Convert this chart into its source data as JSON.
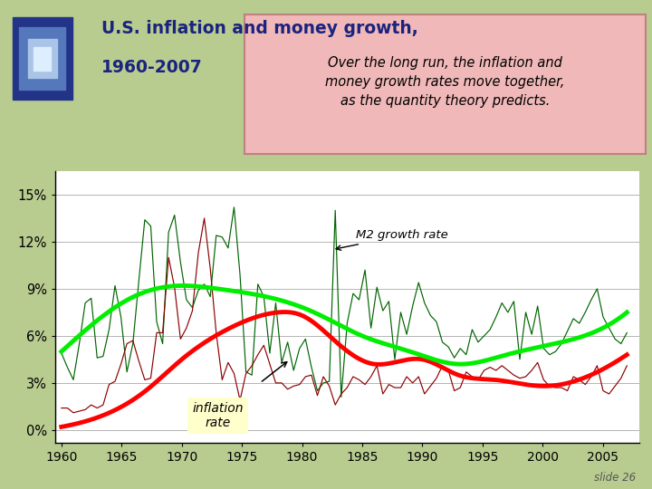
{
  "title_line1": "U.S. inflation and money growth,",
  "title_line2": "1960-2007",
  "title_color": "#1a237e",
  "background_color": "#b8cc90",
  "plot_bg_color": "#ffffff",
  "annotation_text": "Over the long run, the inflation and\nmoney growth rates move together,\nas the quantity theory predicts.",
  "annotation_bg": "#f0b8b8",
  "inflation_label": "inflation\nrate",
  "inflation_label_bg": "#ffffcc",
  "m2_label": "M2 growth rate",
  "yticks": [
    0,
    3,
    6,
    9,
    12,
    15
  ],
  "ytick_labels": [
    "0%",
    "3%",
    "6%",
    "9%",
    "12%",
    "15%"
  ],
  "xticks": [
    1960,
    1965,
    1970,
    1975,
    1980,
    1985,
    1990,
    1995,
    2000,
    2005
  ],
  "ylim": [
    -0.8,
    16.5
  ],
  "xlim": [
    1959.5,
    2008.0
  ],
  "slide_text": "slide 26",
  "inflation_color": "#8b0000",
  "m2_color": "#006400",
  "trend_inflation_color": "#ff0000",
  "trend_m2_color": "#00ee00",
  "infl_trend_x": [
    1960,
    1963,
    1967,
    1970,
    1974,
    1978,
    1980,
    1983,
    1986,
    1990,
    1993,
    1996,
    2000,
    2003,
    2007
  ],
  "infl_trend_y": [
    0.2,
    0.8,
    2.5,
    4.5,
    6.5,
    7.5,
    7.3,
    5.5,
    4.2,
    4.5,
    3.5,
    3.2,
    2.8,
    3.2,
    4.8
  ],
  "m2_trend_x": [
    1960,
    1963,
    1966,
    1970,
    1973,
    1977,
    1981,
    1985,
    1989,
    1993,
    1997,
    2001,
    2005,
    2007
  ],
  "m2_trend_y": [
    5.0,
    7.0,
    8.5,
    9.2,
    9.0,
    8.5,
    7.5,
    6.0,
    5.0,
    4.2,
    4.8,
    5.5,
    6.5,
    7.5
  ],
  "inflation_data": [
    1.4,
    1.4,
    1.1,
    1.2,
    1.3,
    1.6,
    1.4,
    1.6,
    2.9,
    3.1,
    4.2,
    5.5,
    5.7,
    4.4,
    3.2,
    3.3,
    6.2,
    6.2,
    11.0,
    9.1,
    5.8,
    6.5,
    7.6,
    11.3,
    13.5,
    10.3,
    6.2,
    3.2,
    4.3,
    3.6,
    1.9,
    3.6,
    4.1,
    4.8,
    5.4,
    4.2,
    3.0,
    3.0,
    2.6,
    2.8,
    2.9,
    3.4,
    3.5,
    2.2,
    3.4,
    2.8,
    1.6,
    2.3,
    2.7,
    3.4,
    3.2,
    2.9,
    3.4,
    4.1,
    2.3,
    2.9,
    2.7,
    2.7,
    3.4,
    3.0,
    3.4,
    2.3,
    2.8,
    3.3,
    4.1,
    3.8,
    2.5,
    2.7,
    3.7,
    3.4,
    3.2,
    3.8,
    4.0,
    3.8,
    4.1,
    3.8,
    3.5,
    3.3,
    3.4,
    3.8,
    4.3,
    3.2,
    2.8,
    2.7,
    2.7,
    2.5,
    3.4,
    3.2,
    2.9,
    3.4,
    4.1,
    2.5,
    2.3,
    2.8,
    3.3,
    4.1
  ],
  "m2_data": [
    4.9,
    4.0,
    3.2,
    5.5,
    8.1,
    8.4,
    4.6,
    4.7,
    6.4,
    9.2,
    7.2,
    3.7,
    5.5,
    9.5,
    13.4,
    13.0,
    6.9,
    5.5,
    12.6,
    13.7,
    10.7,
    8.3,
    7.8,
    8.9,
    9.3,
    8.5,
    12.4,
    12.3,
    11.6,
    14.2,
    9.9,
    3.7,
    3.5,
    9.3,
    8.5,
    4.9,
    8.1,
    4.3,
    5.6,
    3.8,
    5.2,
    5.8,
    4.0,
    2.5,
    3.0,
    3.1,
    14.0,
    2.1,
    6.8,
    8.7,
    8.3,
    10.2,
    6.5,
    9.1,
    7.6,
    8.2,
    4.5,
    7.5,
    6.1,
    7.9,
    9.4,
    8.1,
    7.3,
    6.9,
    5.6,
    5.3,
    4.6,
    5.2,
    4.8,
    6.4,
    5.6,
    6.0,
    6.4,
    7.2,
    8.1,
    7.5,
    8.2,
    4.5,
    7.5,
    6.1,
    7.9,
    5.2,
    4.8,
    5.0,
    5.5,
    6.3,
    7.1,
    6.8,
    7.5,
    8.3,
    9.0,
    7.2,
    6.5,
    5.8,
    5.5,
    6.2
  ]
}
